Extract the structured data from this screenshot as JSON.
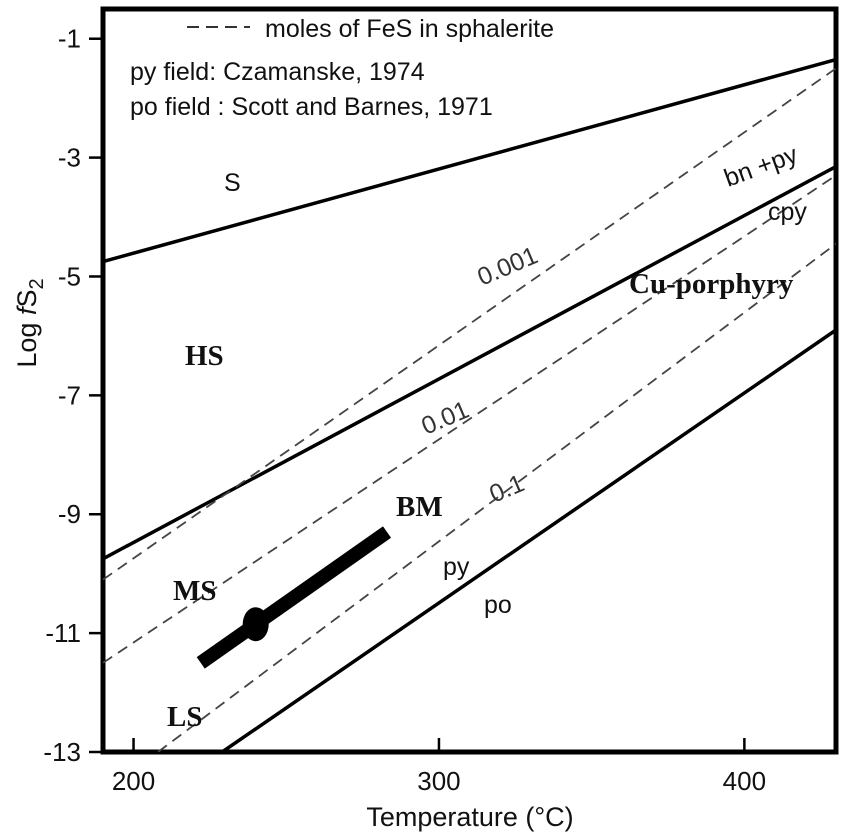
{
  "chart_data": {
    "type": "line",
    "xlabel": "Temperature (°C)",
    "ylabel": {
      "main": "Log ",
      "italic": "f",
      "base": "S",
      "sub": "2"
    },
    "xlim": [
      190,
      430
    ],
    "ylim": [
      -13,
      -0.5
    ],
    "x_ticks": [
      200,
      300,
      400
    ],
    "y_ticks": [
      -1,
      -3,
      -5,
      -7,
      -9,
      -11,
      -13
    ],
    "legend": {
      "dashed_entry": "moles of FeS in sphalerite",
      "notes": [
        "py field: Czamanske, 1974",
        "po field : Scott and Barnes, 1971"
      ]
    },
    "boundaries": [
      {
        "name": "S / HS",
        "style": "solid",
        "points": [
          [
            190,
            -4.75
          ],
          [
            430,
            -1.35
          ]
        ]
      },
      {
        "name": "bn+py / cpy",
        "style": "solid",
        "points": [
          [
            190,
            -9.75
          ],
          [
            430,
            -3.15
          ]
        ]
      },
      {
        "name": "py / po",
        "style": "solid",
        "points": [
          [
            229,
            -13.0
          ],
          [
            430,
            -5.9
          ]
        ]
      }
    ],
    "isopleths": [
      {
        "name": "0.001",
        "style": "dashed",
        "points": [
          [
            190,
            -10.1
          ],
          [
            430,
            -1.5
          ]
        ]
      },
      {
        "name": "0.01",
        "style": "dashed",
        "points": [
          [
            190,
            -11.5
          ],
          [
            430,
            -3.3
          ]
        ]
      },
      {
        "name": "0.1",
        "style": "dashed",
        "points": [
          [
            208,
            -13.0
          ],
          [
            430,
            -4.45
          ]
        ]
      }
    ],
    "bm_trend": {
      "from": [
        222,
        -11.5
      ],
      "to": [
        283,
        -9.3
      ],
      "marker": [
        240,
        -10.85
      ]
    },
    "labels": {
      "S": "S",
      "HS": "HS",
      "MS": "MS",
      "LS": "LS",
      "BM": "BM",
      "bn_py": "bn +py",
      "cpy": "cpy",
      "cu_porphyry": "Cu-porphyry",
      "py": "py",
      "po": "po",
      "iso_0001": "0.001",
      "iso_001": "0.01",
      "iso_01": "0.1"
    },
    "grid": false
  }
}
